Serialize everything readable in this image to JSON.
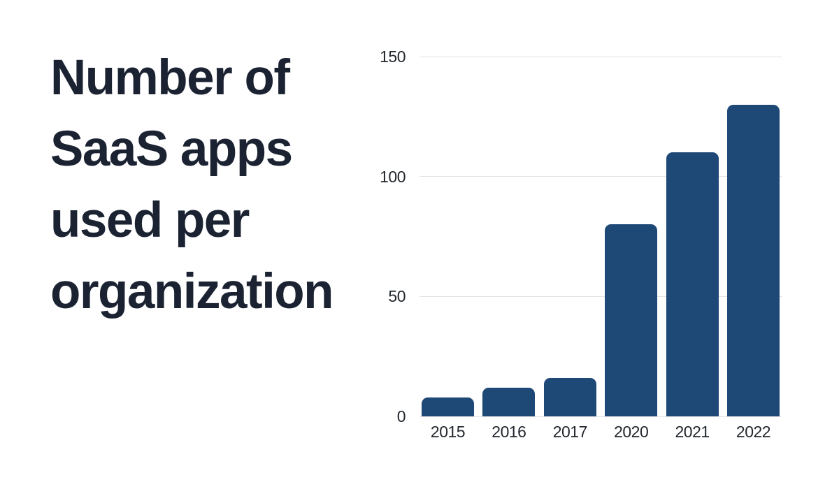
{
  "page": {
    "background": "#ffffff"
  },
  "title": {
    "text": "Number of SaaS apps used per organization",
    "lines": [
      "Number of",
      "SaaS apps",
      "used per",
      "organization"
    ],
    "color": "#1b2333"
  },
  "chart_data": {
    "type": "bar",
    "categories": [
      "2015",
      "2016",
      "2017",
      "2020",
      "2021",
      "2022"
    ],
    "values": [
      8,
      12,
      16,
      80,
      110,
      130
    ],
    "title": "Number of SaaS apps used per organization",
    "xlabel": "",
    "ylabel": "",
    "ylim": [
      0,
      150
    ],
    "yticks": [
      0,
      50,
      100,
      150
    ],
    "grid": true,
    "legend": false,
    "bar_color": "#1e4876",
    "gridline_color": "#e1e3e6",
    "tick_label_color": "#22272e"
  }
}
